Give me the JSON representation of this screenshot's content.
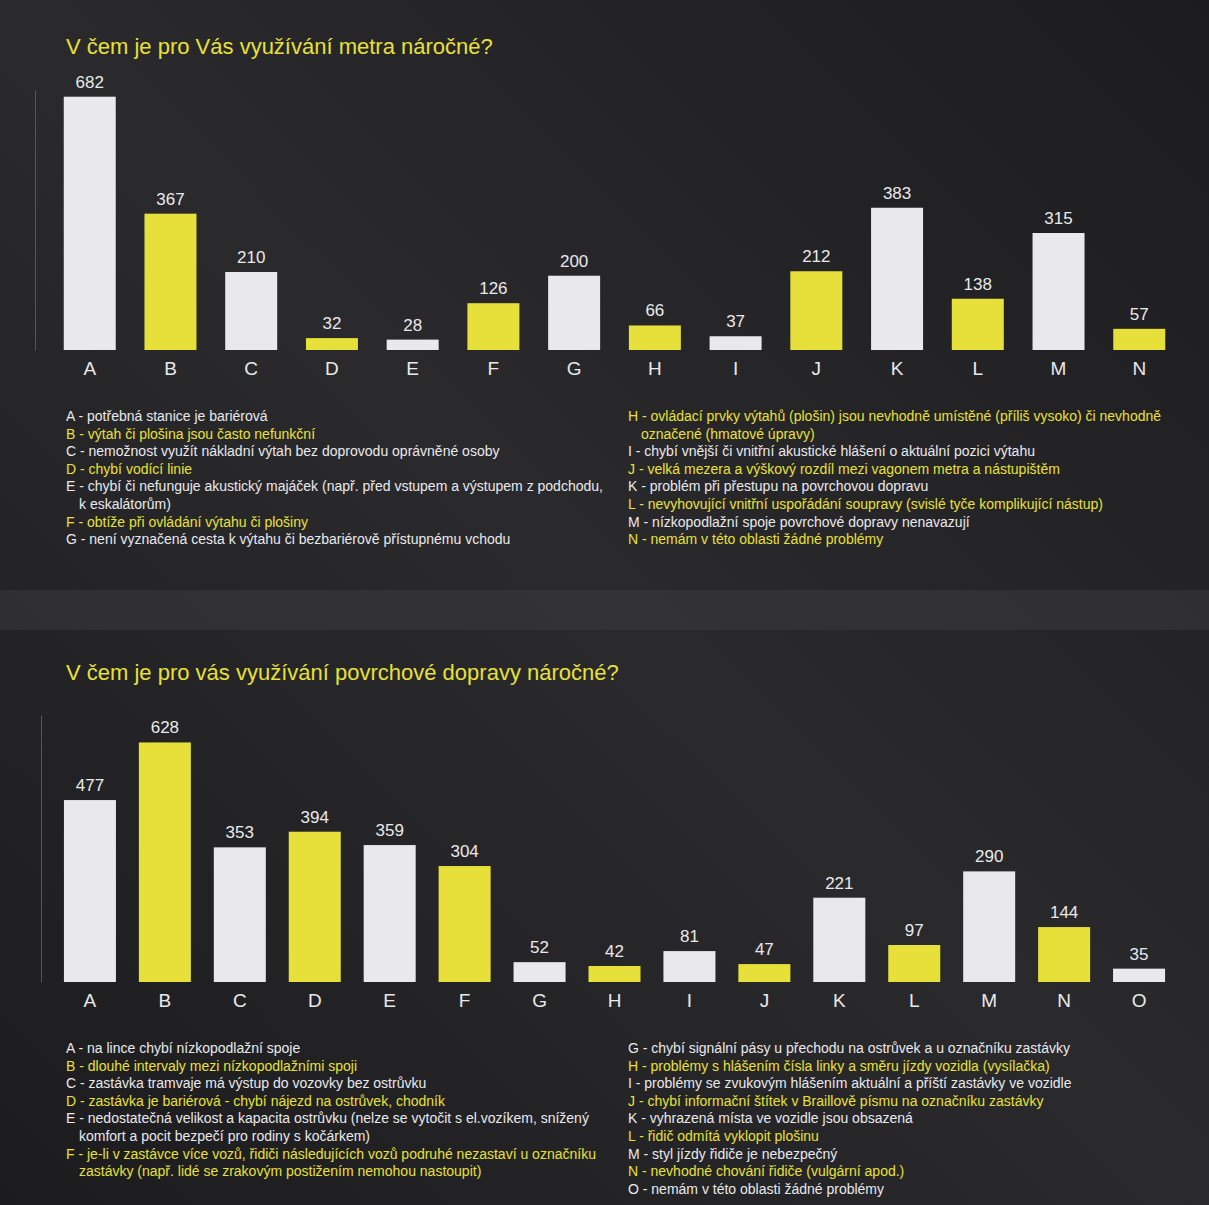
{
  "chart_data": [
    {
      "type": "bar",
      "title": "V čem je pro Vás využívání metra náročné?",
      "categories": [
        "A",
        "B",
        "C",
        "D",
        "E",
        "F",
        "G",
        "H",
        "I",
        "J",
        "K",
        "L",
        "M",
        "N"
      ],
      "values": [
        682,
        367,
        210,
        32,
        28,
        126,
        200,
        66,
        37,
        212,
        383,
        138,
        315,
        57
      ],
      "colors": [
        "#e9e9ec",
        "#e7e03a",
        "#e9e9ec",
        "#e7e03a",
        "#e9e9ec",
        "#e7e03a",
        "#e9e9ec",
        "#e7e03a",
        "#e9e9ec",
        "#e7e03a",
        "#e9e9ec",
        "#e7e03a",
        "#e9e9ec",
        "#e7e03a"
      ],
      "ylim": [
        0,
        700
      ],
      "data_labels": true,
      "tick_labels": "x",
      "annotations": [
        "A - potřebná stanice je bariérová",
        "B - výtah či plošina jsou často nefunkční",
        "C - nemožnost využít nákladní výtah bez doprovodu oprávněné osoby",
        "D - chybí vodící linie",
        "E - chybí či nefunguje akustický majáček (např. před vstupem a výstupem z podchodu, k eskalátorům)",
        "F - obtíže při ovládání výtahu či plošiny",
        "G - není vyznačená cesta k výtahu či bezbariérově přístupnému vchodu",
        "H - ovládací prvky výtahů (plošin) jsou nevhodně umístěné (příliš vysoko) či nevhodně označené (hmatové úpravy)",
        "I - chybí vnější či vnitřní akustické hlášení o aktuální pozici výtahu",
        "J - velká mezera a výškový rozdíl mezi vagonem metra a nástupištěm",
        "K - problém při přestupu na povrchovou dopravu",
        "L - nevyhovující vnitřní uspořádání soupravy (svislé tyče komplikující nástup)",
        "M - nízkopodlažní spoje povrchové dopravy nenavazují",
        "N - nemám v této oblasti žádné problémy"
      ]
    },
    {
      "type": "bar",
      "title": "V čem je pro vás využívání povrchové dopravy náročné?",
      "categories": [
        "A",
        "B",
        "C",
        "D",
        "E",
        "F",
        "G",
        "H",
        "I",
        "J",
        "K",
        "L",
        "M",
        "N",
        "O"
      ],
      "values": [
        477,
        628,
        353,
        394,
        359,
        304,
        52,
        42,
        81,
        47,
        221,
        97,
        290,
        144,
        35
      ],
      "colors": [
        "#e9e9ec",
        "#e7e03a",
        "#e9e9ec",
        "#e7e03a",
        "#e9e9ec",
        "#e7e03a",
        "#e9e9ec",
        "#e7e03a",
        "#e9e9ec",
        "#e7e03a",
        "#e9e9ec",
        "#e7e03a",
        "#e9e9ec",
        "#e7e03a",
        "#e9e9ec"
      ],
      "ylim": [
        0,
        700
      ],
      "data_labels": true,
      "tick_labels": "x",
      "annotations": [
        "A - na lince chybí nízkopodlažní spoje",
        "B - dlouhé intervaly mezi nízkopodlažními spoji",
        "C - zastávka tramvaje má výstup do vozovky bez ostrůvku",
        "D - zastávka je bariérová - chybí nájezd na ostrůvek, chodník",
        "E - nedostatečná velikost a kapacita ostrůvku (nelze se vytočit s el.vozíkem, snížený komfort a pocit bezpečí pro rodiny s kočárkem)",
        "F - je-li v zastávce více vozů, řidiči následujících vozů podruhé nezastaví u označníku zastávky (např. lidé se zrakovým postižením nemohou nastoupit)",
        "G - chybí signální pásy u přechodu na ostrůvek a u označníku zastávky",
        "H - problémy s hlášením čísla linky a směru jízdy vozidla (vysílačka)",
        "I - problémy se zvukovým hlášením aktuální a příští zastávky ve vozidle",
        "J - chybí informační štítek v Braillově písmu na označníku zastávky",
        "K - vyhrazená místa ve vozidle jsou obsazená",
        "L - řidič odmítá vyklopit plošinu",
        "M - styl jízdy řidiče je nebezpečný",
        "N - nevhodné chování řidiče (vulgární apod.)",
        "O - nemám v této oblasti žádné problémy"
      ]
    }
  ]
}
